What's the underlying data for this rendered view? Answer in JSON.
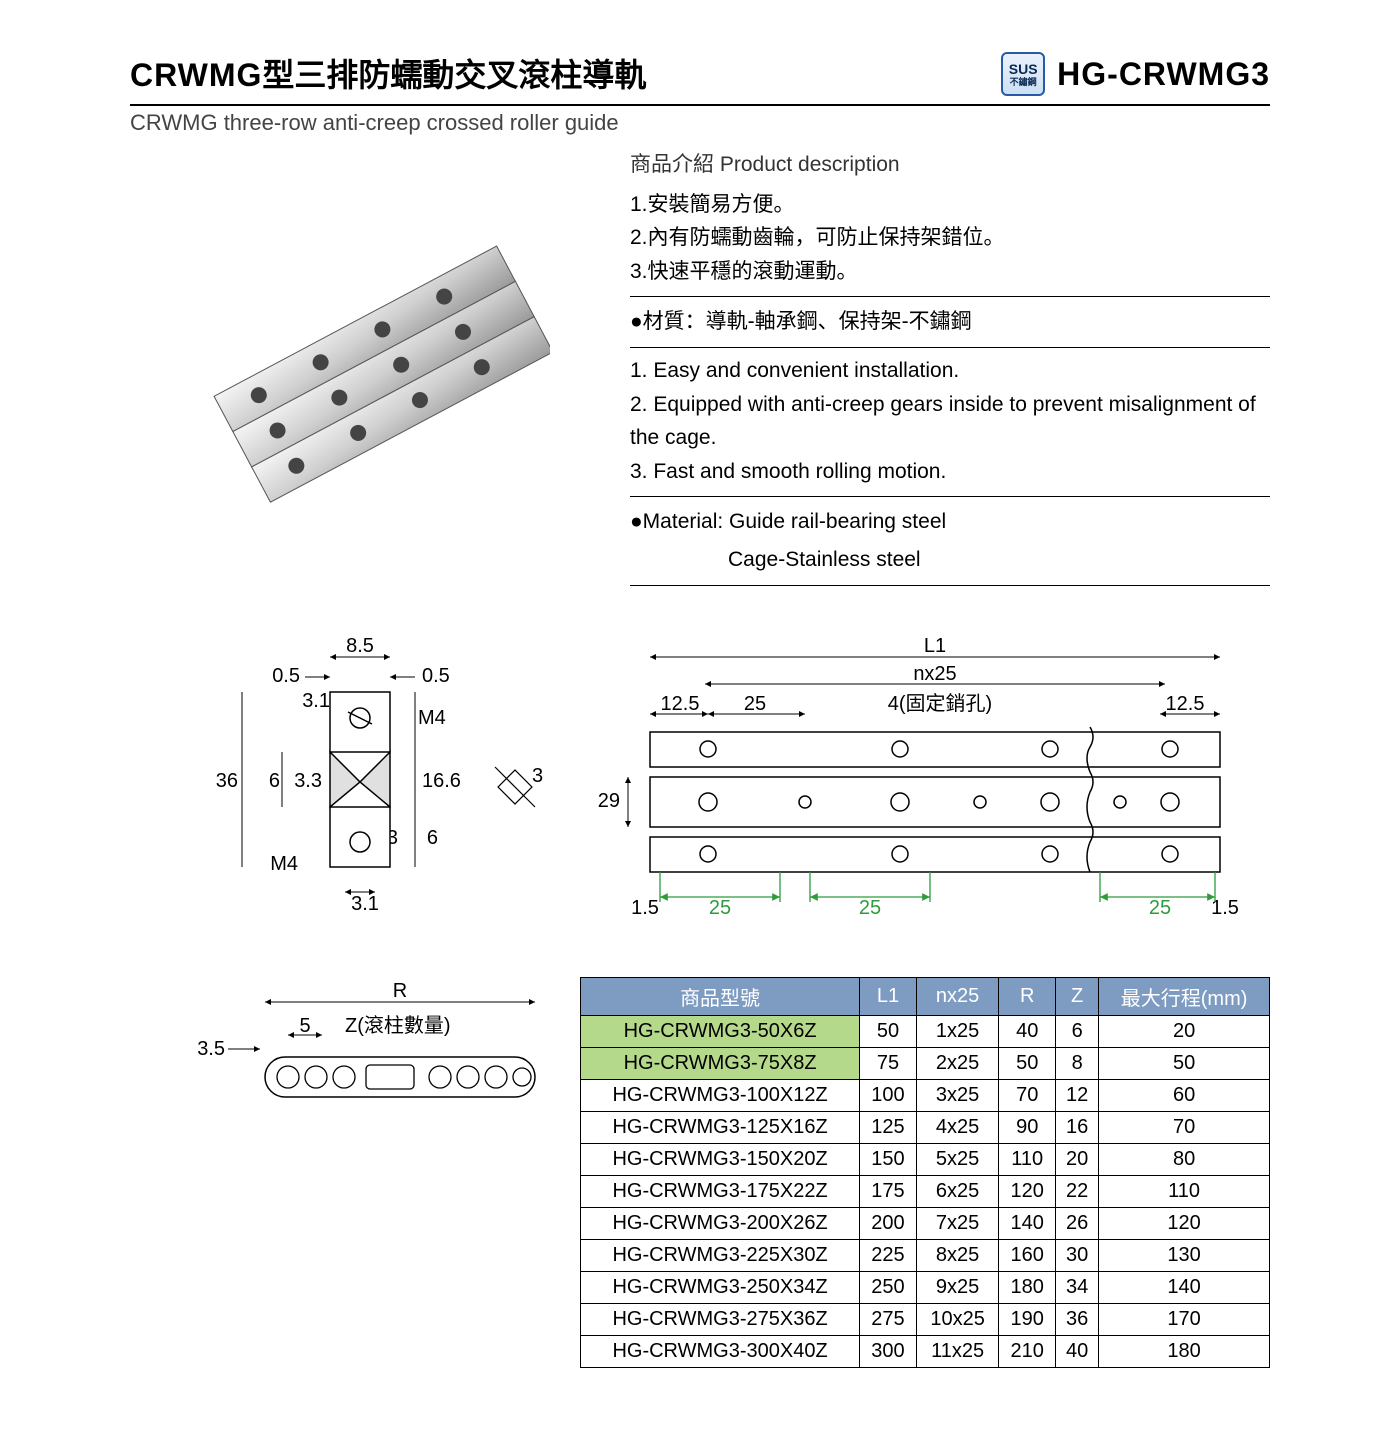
{
  "header": {
    "title_bold": "CRWMG",
    "title_rest": "型三排防蠕動交叉滾柱導軌",
    "subtitle": "CRWMG three-row anti-creep crossed roller guide",
    "badge_top": "SUS",
    "badge_bottom": "不鏽鋼",
    "model": "HG-CRWMG3"
  },
  "desc": {
    "section_label": "商品介紹 Product description",
    "zh": [
      "1.安裝簡易方便。",
      "2.內有防蠕動齒輪，可防止保持架錯位。",
      "3.快速平穩的滾動運動。"
    ],
    "material_zh": "●材質：導軌-軸承鋼、保持架-不鏽鋼",
    "en": [
      "1. Easy and convenient installation.",
      "2. Equipped with anti-creep gears inside to prevent misalignment of the cage.",
      "3. Fast and smooth rolling motion."
    ],
    "material_en1": "●Material: Guide rail-bearing steel",
    "material_en2": "Cage-Stainless steel"
  },
  "section_dims": {
    "d_8_5": "8.5",
    "d_0_5a": "0.5",
    "d_0_5b": "0.5",
    "d_3_1a": "3.1",
    "m4a": "M4",
    "d_36": "36",
    "d_6a": "6",
    "d_3_3a": "3.3",
    "d_16_6": "16.6",
    "d_3": "3",
    "d_3_3b": "3.3",
    "d_6b": "6",
    "m4b": "M4",
    "d_3_1b": "3.1"
  },
  "top_dims": {
    "L1": "L1",
    "nx25": "nx25",
    "d_12_5a": "12.5",
    "d_25a": "25",
    "pin": "4(固定銷孔)",
    "d_12_5b": "12.5",
    "d_29": "29",
    "d_1_5a": "1.5",
    "d_25b": "25",
    "d_25c": "25",
    "d_25d": "25",
    "d_1_5b": "1.5"
  },
  "roller_dims": {
    "R": "R",
    "d_5": "5",
    "Z": "Z(滾柱數量)",
    "d_3_5": "3.5"
  },
  "table": {
    "headers": [
      "商品型號",
      "L1",
      "nx25",
      "R",
      "Z",
      "最大行程(mm)"
    ],
    "rows": [
      {
        "hl": true,
        "c": [
          "HG-CRWMG3-50X6Z",
          "50",
          "1x25",
          "40",
          "6",
          "20"
        ]
      },
      {
        "hl": true,
        "c": [
          "HG-CRWMG3-75X8Z",
          "75",
          "2x25",
          "50",
          "8",
          "50"
        ]
      },
      {
        "hl": false,
        "c": [
          "HG-CRWMG3-100X12Z",
          "100",
          "3x25",
          "70",
          "12",
          "60"
        ]
      },
      {
        "hl": false,
        "c": [
          "HG-CRWMG3-125X16Z",
          "125",
          "4x25",
          "90",
          "16",
          "70"
        ]
      },
      {
        "hl": false,
        "c": [
          "HG-CRWMG3-150X20Z",
          "150",
          "5x25",
          "110",
          "20",
          "80"
        ]
      },
      {
        "hl": false,
        "c": [
          "HG-CRWMG3-175X22Z",
          "175",
          "6x25",
          "120",
          "22",
          "110"
        ]
      },
      {
        "hl": false,
        "c": [
          "HG-CRWMG3-200X26Z",
          "200",
          "7x25",
          "140",
          "26",
          "120"
        ]
      },
      {
        "hl": false,
        "c": [
          "HG-CRWMG3-225X30Z",
          "225",
          "8x25",
          "160",
          "30",
          "130"
        ]
      },
      {
        "hl": false,
        "c": [
          "HG-CRWMG3-250X34Z",
          "250",
          "9x25",
          "180",
          "34",
          "140"
        ]
      },
      {
        "hl": false,
        "c": [
          "HG-CRWMG3-275X36Z",
          "275",
          "10x25",
          "190",
          "36",
          "170"
        ]
      },
      {
        "hl": false,
        "c": [
          "HG-CRWMG3-300X40Z",
          "300",
          "11x25",
          "210",
          "40",
          "180"
        ]
      }
    ]
  },
  "colors": {
    "header_bg": "#7e9cc2",
    "row_hl": "#b5d98a",
    "dim_green": "#2e9b3e"
  }
}
